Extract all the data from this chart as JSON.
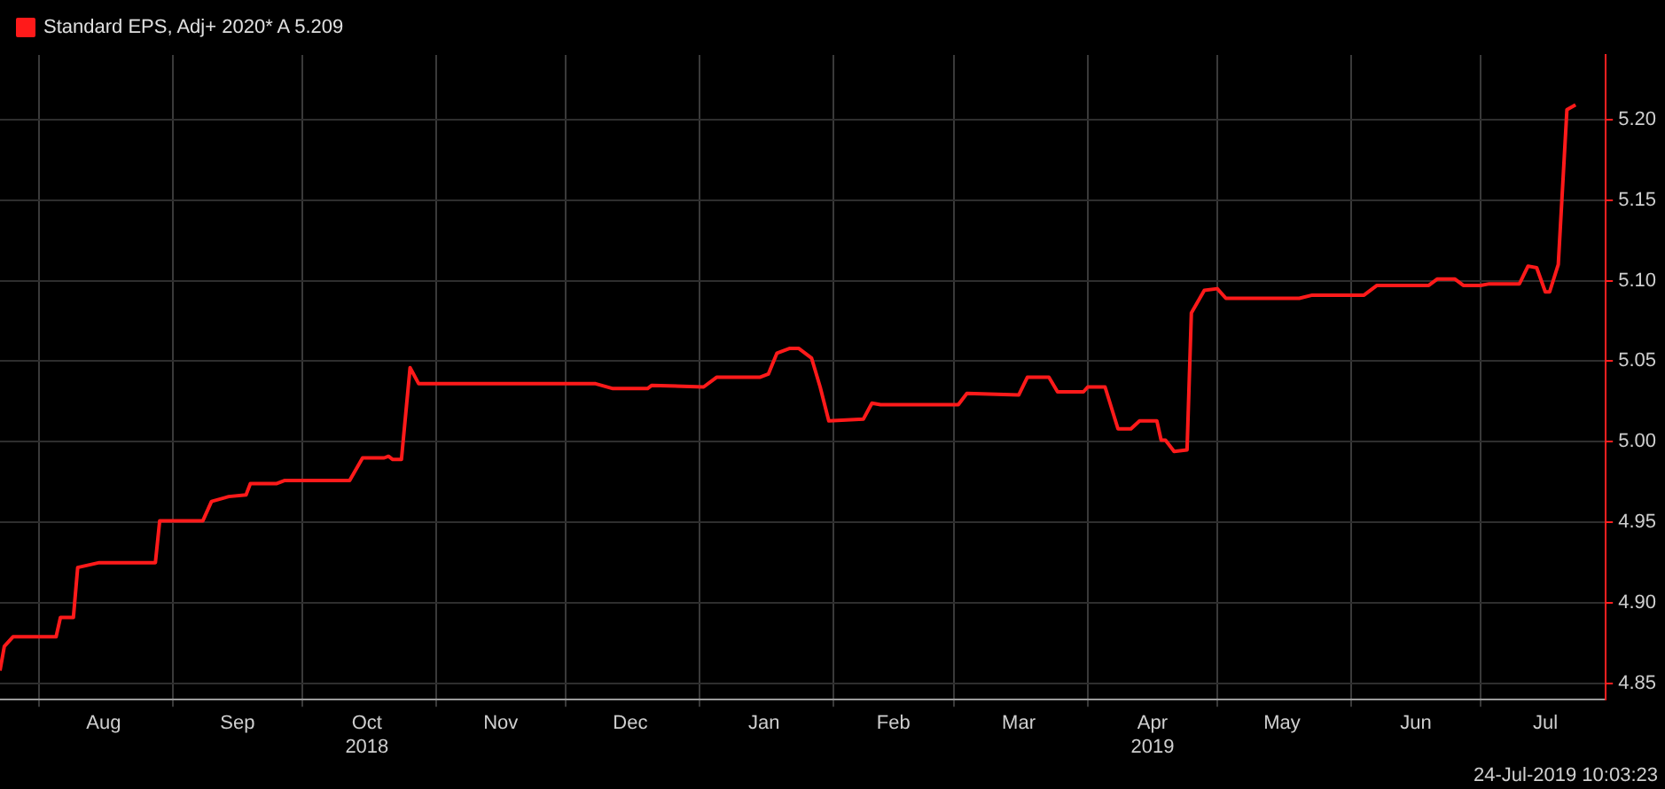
{
  "chart_data": {
    "type": "line",
    "legend": "top left",
    "grid": true,
    "marker": "none",
    "line_style": "solid",
    "x": [
      "2018-07-23",
      "2018-07-24",
      "2018-07-26",
      "2018-08-05",
      "2018-08-06",
      "2018-08-09",
      "2018-08-10",
      "2018-08-15",
      "2018-08-28",
      "2018-08-29",
      "2018-09-08",
      "2018-09-10",
      "2018-09-14",
      "2018-09-18",
      "2018-09-19",
      "2018-09-25",
      "2018-09-27",
      "2018-10-12",
      "2018-10-15",
      "2018-10-20",
      "2018-10-21",
      "2018-10-22",
      "2018-10-24",
      "2018-10-26",
      "2018-10-28",
      "2018-12-08",
      "2018-12-12",
      "2018-12-20",
      "2018-12-21",
      "2019-01-02",
      "2019-01-05",
      "2019-01-15",
      "2019-01-17",
      "2019-01-19",
      "2019-01-22",
      "2019-01-24",
      "2019-01-27",
      "2019-01-29",
      "2019-01-31",
      "2019-02-08",
      "2019-02-10",
      "2019-02-12",
      "2019-03-02",
      "2019-03-04",
      "2019-03-16",
      "2019-03-18",
      "2019-03-23",
      "2019-03-25",
      "2019-03-31",
      "2019-04-01",
      "2019-04-05",
      "2019-04-08",
      "2019-04-11",
      "2019-04-13",
      "2019-04-17",
      "2019-04-18",
      "2019-04-19",
      "2019-04-21",
      "2019-04-24",
      "2019-04-25",
      "2019-04-28",
      "2019-05-01",
      "2019-05-03",
      "2019-05-20",
      "2019-05-23",
      "2019-06-04",
      "2019-06-07",
      "2019-06-19",
      "2019-06-21",
      "2019-06-25",
      "2019-06-27",
      "2019-07-01",
      "2019-07-03",
      "2019-07-10",
      "2019-07-12",
      "2019-07-14",
      "2019-07-16",
      "2019-07-17",
      "2019-07-19",
      "2019-07-21",
      "2019-07-23"
    ],
    "series": [
      {
        "name": "Standard EPS, Adj+ 2020* A 5.209",
        "color": "#ff1a1a",
        "values": [
          4.858,
          4.873,
          4.879,
          4.879,
          4.891,
          4.891,
          4.922,
          4.925,
          4.925,
          4.951,
          4.951,
          4.963,
          4.966,
          4.967,
          4.974,
          4.974,
          4.976,
          4.976,
          4.99,
          4.99,
          4.991,
          4.989,
          4.989,
          5.046,
          5.036,
          5.036,
          5.033,
          5.033,
          5.035,
          5.034,
          5.04,
          5.04,
          5.042,
          5.055,
          5.058,
          5.058,
          5.052,
          5.034,
          5.013,
          5.014,
          5.024,
          5.023,
          5.023,
          5.03,
          5.029,
          5.04,
          5.04,
          5.031,
          5.031,
          5.034,
          5.034,
          5.008,
          5.008,
          5.013,
          5.013,
          5.001,
          5.001,
          4.994,
          4.995,
          5.08,
          5.094,
          5.095,
          5.089,
          5.089,
          5.091,
          5.091,
          5.097,
          5.097,
          5.101,
          5.101,
          5.097,
          5.097,
          5.098,
          5.098,
          5.109,
          5.108,
          5.093,
          5.093,
          5.11,
          5.206,
          5.209
        ]
      }
    ],
    "xlim": [
      "2018-07-23",
      "2019-07-30"
    ],
    "xticks": [
      {
        "value": "2018-08-01",
        "label": null
      },
      {
        "value": "2018-08-16",
        "label": "Aug"
      },
      {
        "value": "2018-09-01",
        "label": null
      },
      {
        "value": "2018-09-16",
        "label": "Sep"
      },
      {
        "value": "2018-10-01",
        "label": null
      },
      {
        "value": "2018-10-16",
        "label": "Oct\n2018"
      },
      {
        "value": "2018-11-01",
        "label": null
      },
      {
        "value": "2018-11-16",
        "label": "Nov"
      },
      {
        "value": "2018-12-01",
        "label": null
      },
      {
        "value": "2018-12-16",
        "label": "Dec"
      },
      {
        "value": "2019-01-01",
        "label": null
      },
      {
        "value": "2019-01-16",
        "label": "Jan"
      },
      {
        "value": "2019-02-01",
        "label": null
      },
      {
        "value": "2019-02-15",
        "label": "Feb"
      },
      {
        "value": "2019-03-01",
        "label": null
      },
      {
        "value": "2019-03-16",
        "label": "Mar"
      },
      {
        "value": "2019-04-01",
        "label": null
      },
      {
        "value": "2019-04-16",
        "label": "Apr\n2019"
      },
      {
        "value": "2019-05-01",
        "label": null
      },
      {
        "value": "2019-05-16",
        "label": "May"
      },
      {
        "value": "2019-06-01",
        "label": null
      },
      {
        "value": "2019-06-16",
        "label": "Jun"
      },
      {
        "value": "2019-07-01",
        "label": null
      },
      {
        "value": "2019-07-16",
        "label": "Jul"
      }
    ],
    "ylim": [
      4.84,
      5.24
    ],
    "yticks": [
      {
        "value": 4.85,
        "label": "4.85"
      },
      {
        "value": 4.9,
        "label": "4.90"
      },
      {
        "value": 4.95,
        "label": "4.95"
      },
      {
        "value": 5.0,
        "label": "5.00"
      },
      {
        "value": 5.05,
        "label": "5.05"
      },
      {
        "value": 5.1,
        "label": "5.10"
      },
      {
        "value": 5.15,
        "label": "5.15"
      },
      {
        "value": 5.2,
        "label": "5.20"
      }
    ],
    "annotations": [
      "24-Jul-2019 10:03:23"
    ]
  }
}
